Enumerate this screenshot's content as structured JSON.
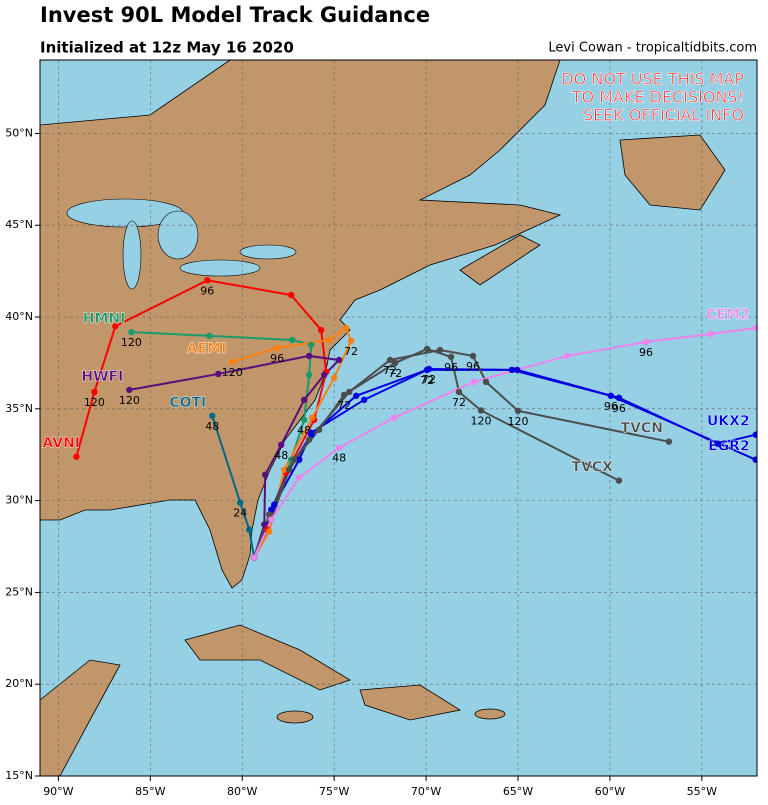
{
  "header": {
    "title": "Invest 90L Model Track Guidance",
    "subtitle": "Initialized at 12z May 16 2020",
    "credit": "Levi Cowan - tropicaltidbits.com"
  },
  "warning": [
    "DO NOT USE THIS MAP",
    "TO MAKE DECISIONS!",
    "SEEK OFFICIAL INFO"
  ],
  "map": {
    "xlim": [
      -91,
      -52
    ],
    "ylim": [
      15,
      54
    ],
    "xticks": [
      {
        "value": -90,
        "label": "90°W"
      },
      {
        "value": -85,
        "label": "85°W"
      },
      {
        "value": -80,
        "label": "80°W"
      },
      {
        "value": -75,
        "label": "75°W"
      },
      {
        "value": -70,
        "label": "70°W"
      },
      {
        "value": -65,
        "label": "65°W"
      },
      {
        "value": -60,
        "label": "60°W"
      },
      {
        "value": -55,
        "label": "55°W"
      }
    ],
    "yticks": [
      {
        "value": 15,
        "label": "15°N"
      },
      {
        "value": 20,
        "label": "20°N"
      },
      {
        "value": 25,
        "label": "25°N"
      },
      {
        "value": 30,
        "label": "30°N"
      },
      {
        "value": 35,
        "label": "35°N"
      },
      {
        "value": 40,
        "label": "40°N"
      },
      {
        "value": 45,
        "label": "45°N"
      },
      {
        "value": 50,
        "label": "50°N"
      }
    ],
    "grid": true,
    "tracks": [
      {
        "name": "AVNI",
        "color": "#ff0000",
        "lon": [
          -79.35,
          -78.64,
          -77.61,
          -76.09,
          -75.43,
          -75.71,
          -77.34,
          -81.9,
          -86.9,
          -88.04,
          -89.02
        ],
        "lat": [
          26.9,
          28.42,
          31.52,
          34.4,
          37.01,
          39.29,
          41.2,
          42.0,
          39.5,
          35.92,
          32.39
        ],
        "labels": [
          null,
          null,
          null,
          null,
          null,
          null,
          null,
          "96",
          null,
          "120",
          null
        ]
      },
      {
        "name": "HMNI",
        "color": "#1a9a6a",
        "lon": [
          -79.35,
          -78.42,
          -77.34,
          -76.63,
          -76.36,
          -76.25,
          -77.28,
          -81.79,
          -86.03
        ],
        "lat": [
          26.9,
          28.97,
          32.23,
          34.4,
          36.85,
          38.48,
          38.75,
          38.97,
          39.18
        ],
        "labels": [
          null,
          null,
          null,
          "48",
          null,
          null,
          null,
          null,
          "120"
        ]
      },
      {
        "name": "AEMI",
        "color": "#ff7f0e",
        "lon": [
          -79.35,
          -78.53,
          -77.72,
          -76.2,
          -75.0,
          -74.08,
          -74.35,
          -75.27,
          -78.1,
          -80.54
        ],
        "lat": [
          26.9,
          28.32,
          31.68,
          34.51,
          36.68,
          38.7,
          39.4,
          38.75,
          38.32,
          37.55
        ],
        "labels": [
          null,
          null,
          null,
          null,
          null,
          "72",
          null,
          null,
          "96",
          "120"
        ]
      },
      {
        "name": "HWFI",
        "color": "#5b0d7e",
        "lon": [
          -79.35,
          -78.8,
          -78.75,
          -77.88,
          -76.63,
          -75.54,
          -74.73,
          -76.36,
          -81.3,
          -86.14
        ],
        "lat": [
          26.9,
          28.7,
          31.41,
          33.04,
          35.49,
          36.85,
          37.66,
          37.88,
          36.9,
          36.03
        ],
        "labels": [
          null,
          null,
          null,
          "48",
          null,
          null,
          null,
          null,
          null,
          "120"
        ]
      },
      {
        "name": "COTI",
        "color": "#00688b",
        "lon": [
          -79.35,
          -79.62,
          -80.11,
          -81.63
        ],
        "lat": [
          26.9,
          28.42,
          29.89,
          34.62
        ],
        "labels": [
          null,
          null,
          "24",
          "48"
        ]
      },
      {
        "name": "EGR2",
        "color": "#0000e0",
        "lon": [
          -79.35,
          -78.42,
          -77.45,
          -76.25,
          -73.8,
          -69.95,
          -65.33,
          -59.95,
          -52.07
        ],
        "lat": [
          26.9,
          29.51,
          31.68,
          33.59,
          35.71,
          37.12,
          37.12,
          35.71,
          32.23
        ],
        "labels": [
          null,
          null,
          null,
          null,
          null,
          "72",
          null,
          "96",
          null
        ]
      },
      {
        "name": "UKX2",
        "color": "#0000e0",
        "lon": [
          -79.35,
          -78.26,
          -76.9,
          -76.25,
          -73.37,
          -69.84,
          -65.05,
          -59.51,
          -54.13,
          -52.07
        ],
        "lat": [
          26.9,
          29.78,
          32.23,
          33.7,
          35.49,
          37.17,
          37.12,
          35.6,
          33.1,
          33.59
        ],
        "labels": [
          null,
          null,
          null,
          null,
          null,
          "72",
          null,
          "96",
          null,
          null
        ]
      },
      {
        "name": "TVCN",
        "color": "#4d4d4d",
        "lon": [
          -79.35,
          -78.42,
          -77.45,
          -76.36,
          -74.18,
          -71.96,
          -69.24,
          -67.45,
          -66.74,
          -65.0,
          -56.79
        ],
        "lat": [
          26.9,
          28.97,
          31.68,
          33.32,
          35.92,
          37.66,
          38.2,
          37.88,
          36.47,
          34.89,
          33.21
        ],
        "labels": [
          null,
          null,
          null,
          null,
          null,
          "72",
          null,
          "96",
          null,
          "120",
          null
        ]
      },
      {
        "name": "TVCX",
        "color": "#4d4d4d",
        "lon": [
          -79.35,
          -78.53,
          -77.17,
          -75.82,
          -74.46,
          -71.68,
          -69.95,
          -68.64,
          -68.21,
          -67.01,
          -59.51
        ],
        "lat": [
          26.9,
          29.24,
          32.23,
          33.86,
          35.76,
          37.5,
          38.26,
          37.83,
          35.92,
          34.91,
          31.09
        ],
        "labels": [
          null,
          null,
          null,
          null,
          "72",
          "72",
          null,
          "96",
          "72",
          "120",
          null
        ]
      },
      {
        "name": "CEM2",
        "color": "#ee82ee",
        "lon": [
          -79.35,
          -78.42,
          -76.9,
          -74.73,
          -71.74,
          -67.39,
          -62.34,
          -58.04,
          -54.51,
          -52.07
        ],
        "lat": [
          26.9,
          28.97,
          31.25,
          32.88,
          34.51,
          36.47,
          37.88,
          38.64,
          39.08,
          39.4
        ],
        "labels": [
          null,
          null,
          null,
          "48",
          null,
          null,
          null,
          "96",
          null,
          null
        ]
      }
    ]
  }
}
